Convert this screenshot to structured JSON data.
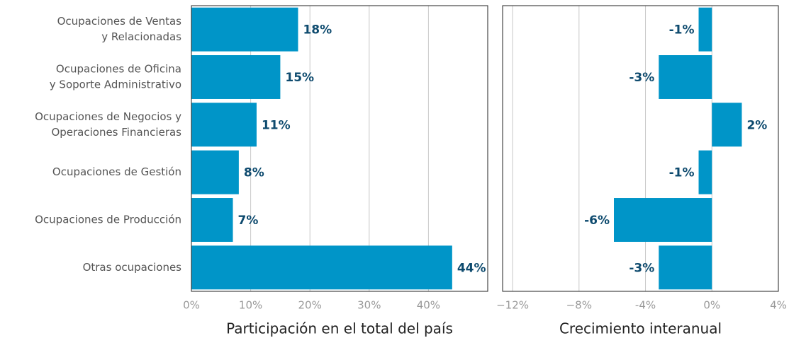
{
  "chart_data": [
    {
      "type": "barh",
      "categories": [
        [
          "Ocupaciones de Ventas",
          "y Relacionadas"
        ],
        [
          "Ocupaciones de Oficina",
          "y Soporte Administrativo"
        ],
        [
          "Ocupaciones de Negocios y",
          "Operaciones Financieras"
        ],
        [
          "Ocupaciones de Gestión"
        ],
        [
          "Ocupaciones de Producción"
        ],
        [
          "Otras ocupaciones"
        ]
      ],
      "values": [
        18,
        15,
        11,
        8,
        7,
        44
      ],
      "value_labels": [
        "18%",
        "15%",
        "11%",
        "8%",
        "7%",
        "44%"
      ],
      "xlim": [
        0,
        50
      ],
      "xticks": [
        {
          "value": 0,
          "label": "0%"
        },
        {
          "value": 10,
          "label": "10%"
        },
        {
          "value": 20,
          "label": "20%"
        },
        {
          "value": 30,
          "label": "30%"
        },
        {
          "value": 40,
          "label": "40%"
        }
      ],
      "xlabel": "Participación en el total del país",
      "color": "#0095c8",
      "grid": true
    },
    {
      "type": "barh",
      "values": [
        -0.8,
        -3.2,
        1.8,
        -0.8,
        -5.9,
        -3.2
      ],
      "value_labels": [
        "-1%",
        "-3%",
        "2%",
        "-1%",
        "-6%",
        "-3%"
      ],
      "xlim": [
        -12.6,
        4
      ],
      "xticks": [
        {
          "value": -12,
          "label": "−12%"
        },
        {
          "value": -8,
          "label": "−8%"
        },
        {
          "value": -4,
          "label": "-4%"
        },
        {
          "value": 0,
          "label": "0%"
        },
        {
          "value": 4,
          "label": "4%"
        }
      ],
      "xlabel": "Crecimiento interanual",
      "color": "#0095c8",
      "grid": true
    }
  ]
}
